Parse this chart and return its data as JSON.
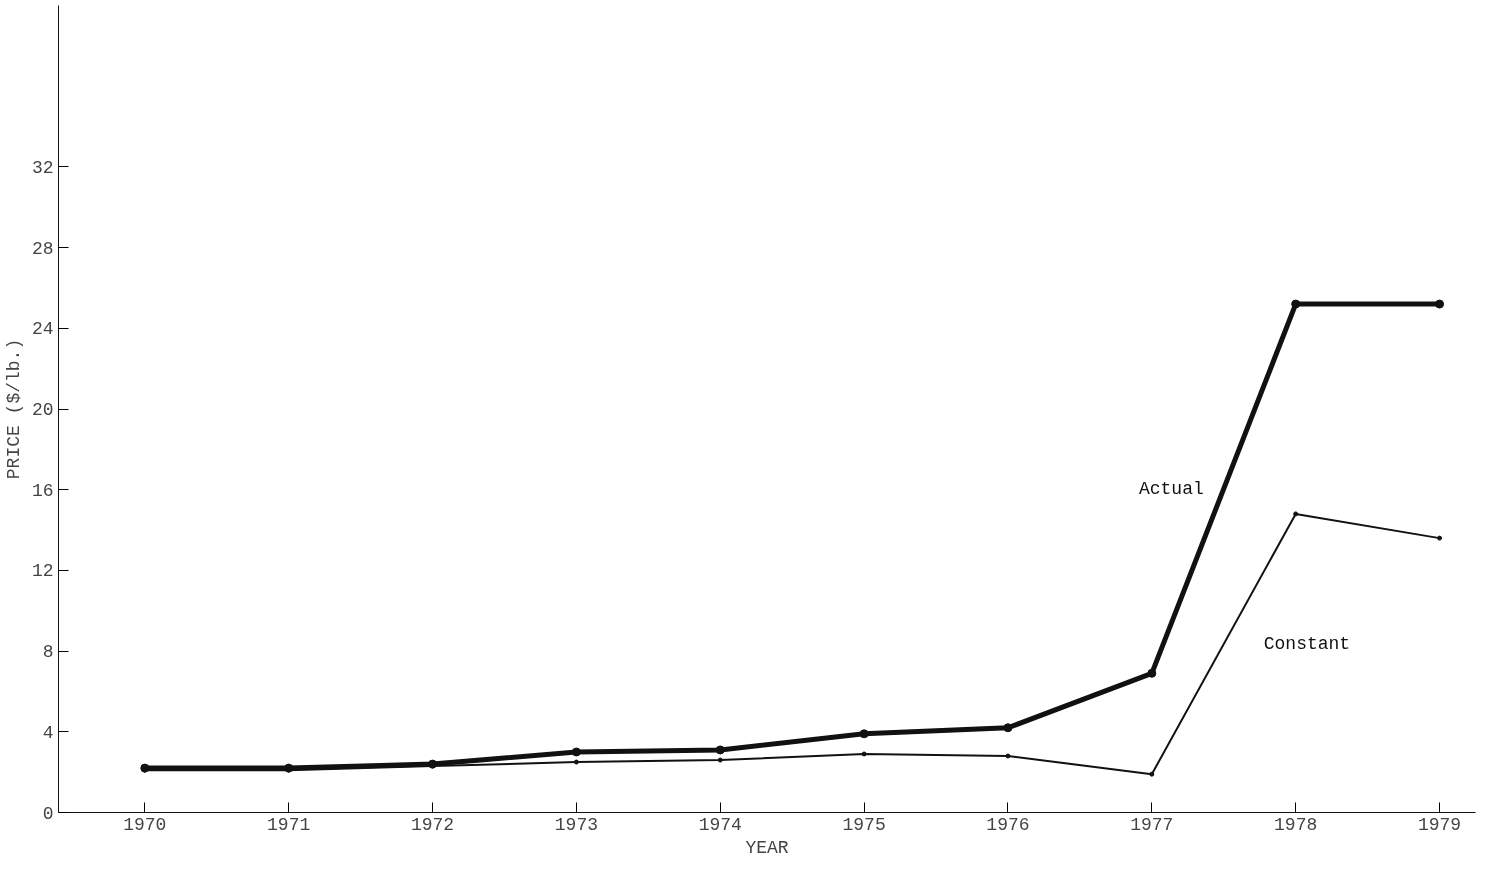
{
  "chart_data": {
    "type": "line",
    "xlabel": "YEAR",
    "ylabel": "PRICE ($/lb.)",
    "x": [
      1970,
      1971,
      1972,
      1973,
      1974,
      1975,
      1976,
      1977,
      1978,
      1979
    ],
    "series": [
      {
        "name": "Actual",
        "color": "#111111",
        "values": [
          2.2,
          2.2,
          2.4,
          3.0,
          3.1,
          3.9,
          4.2,
          6.9,
          25.2,
          25.2
        ]
      },
      {
        "name": "Constant",
        "color": "#111111",
        "values": [
          2.1,
          2.1,
          2.3,
          2.5,
          2.6,
          2.9,
          2.8,
          1.9,
          14.8,
          13.6
        ]
      }
    ],
    "xlim": [
      1969.4,
      1979.25
    ],
    "ylim": [
      0,
      40
    ],
    "xticks": [
      1970,
      1971,
      1972,
      1973,
      1974,
      1975,
      1976,
      1977,
      1978,
      1979
    ],
    "yticks": [
      0,
      4,
      8,
      12,
      16,
      20,
      24,
      28,
      32
    ],
    "grid": false,
    "legend": false,
    "marker": "circle",
    "line_style": "solid"
  }
}
